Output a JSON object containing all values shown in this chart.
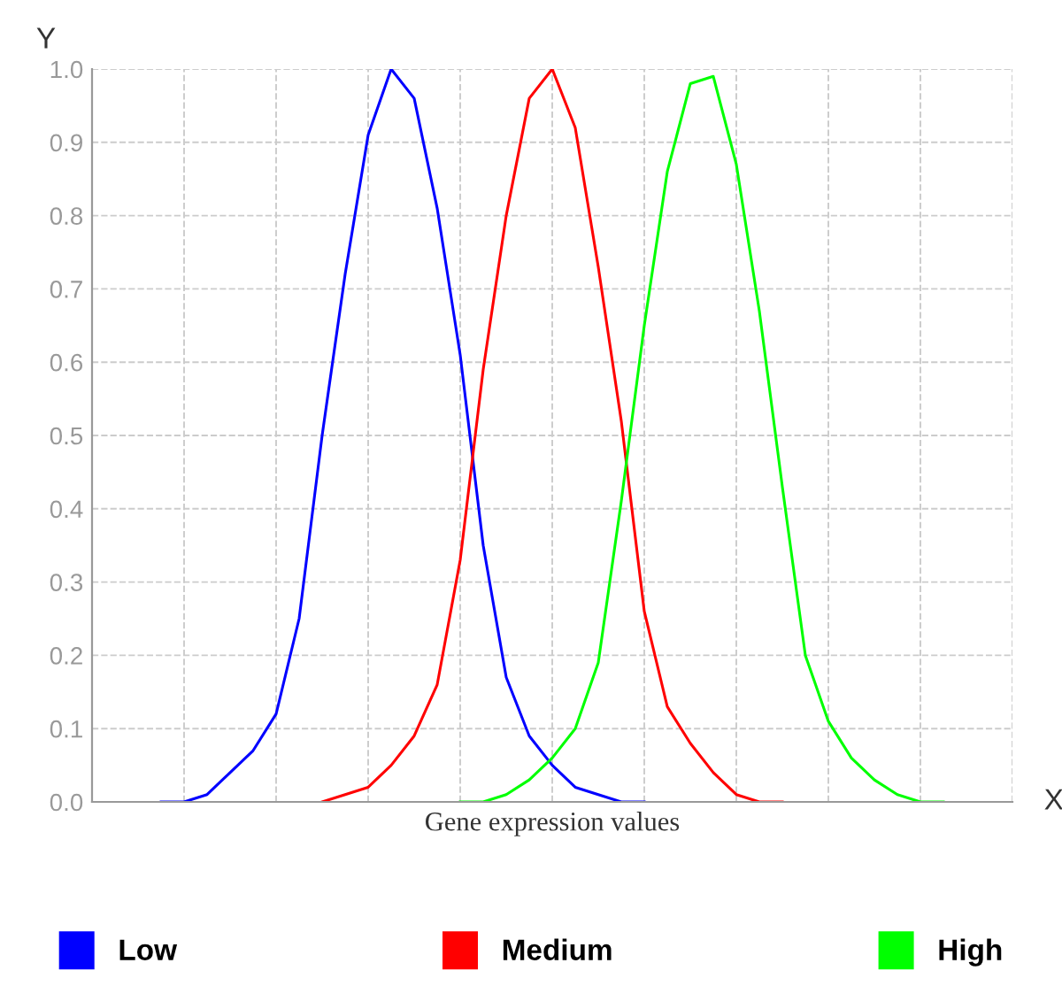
{
  "chart_data": {
    "type": "line",
    "ylabel": "Y",
    "xlabel": "Gene expression values",
    "annotations": [
      "X"
    ],
    "categories": [
      null,
      null,
      null,
      null,
      null,
      null,
      null,
      null,
      null,
      null,
      null,
      null,
      null,
      null,
      null,
      null,
      null,
      null,
      null,
      null,
      null,
      null,
      null,
      null,
      null,
      null,
      null,
      null,
      null,
      null,
      null,
      null,
      null,
      null,
      null,
      null,
      null,
      null,
      null,
      null,
      null
    ],
    "series": [
      {
        "name": "Low",
        "color": "#0000ff",
        "values": [
          null,
          null,
          null,
          0,
          0,
          0.01,
          0.04,
          0.07,
          0.12,
          0.25,
          0.5,
          0.72,
          0.91,
          1.0,
          0.96,
          0.81,
          0.61,
          0.35,
          0.17,
          0.09,
          0.05,
          0.02,
          0.01,
          0,
          0,
          null,
          null,
          null,
          null,
          null,
          null,
          null,
          null,
          null,
          null,
          null,
          null,
          null,
          null,
          null,
          null
        ]
      },
      {
        "name": "Medium",
        "color": "#ff0000",
        "values": [
          null,
          null,
          null,
          null,
          null,
          null,
          null,
          null,
          null,
          null,
          0,
          0.01,
          0.02,
          0.05,
          0.09,
          0.16,
          0.33,
          0.59,
          0.8,
          0.96,
          1.0,
          0.92,
          0.73,
          0.52,
          0.26,
          0.13,
          0.08,
          0.04,
          0.01,
          0,
          0,
          null,
          null,
          null,
          null,
          null,
          null,
          null,
          null,
          null,
          null
        ]
      },
      {
        "name": "High",
        "color": "#00ff00",
        "values": [
          null,
          null,
          null,
          null,
          null,
          null,
          null,
          null,
          null,
          null,
          null,
          null,
          null,
          null,
          null,
          null,
          0,
          0,
          0.01,
          0.03,
          0.06,
          0.1,
          0.19,
          0.41,
          0.65,
          0.86,
          0.98,
          0.99,
          0.87,
          0.67,
          0.43,
          0.2,
          0.11,
          0.06,
          0.03,
          0.01,
          0,
          0,
          null,
          null,
          null
        ]
      }
    ],
    "ylim": [
      0,
      1
    ],
    "yticks": [
      {
        "value": 0,
        "label": "0.0"
      },
      {
        "value": 0.1,
        "label": "0.1"
      },
      {
        "value": 0.2,
        "label": "0.2"
      },
      {
        "value": 0.3,
        "label": "0.3"
      },
      {
        "value": 0.4,
        "label": "0.4"
      },
      {
        "value": 0.5,
        "label": "0.5"
      },
      {
        "value": 0.6,
        "label": "0.6"
      },
      {
        "value": 0.7,
        "label": "0.7"
      },
      {
        "value": 0.8,
        "label": "0.8"
      },
      {
        "value": 0.9,
        "label": "0.9"
      },
      {
        "value": 1,
        "label": "1.0"
      }
    ],
    "grid": true,
    "legend": "bottom",
    "tick_labels": "y",
    "marker": "none",
    "line_style": "solid"
  }
}
